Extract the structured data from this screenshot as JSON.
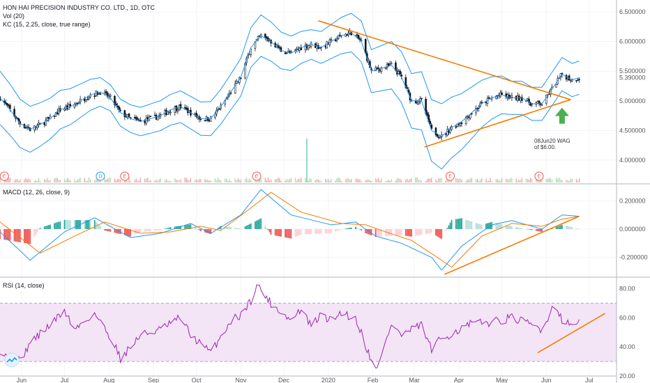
{
  "header": {
    "title": "HON HAI PRECISION INDUSTRY CO. LTD., 1D, OTC",
    "vol_label": "Vol (20)",
    "kc_label": "KC (15, 2.25, close, true range)",
    "macd_label": "MACD (12, 26, close, 9)",
    "rsi_label": "RSI (14, close)"
  },
  "colors": {
    "up": "#26a69a",
    "down": "#ef5350",
    "candle": "#131722",
    "kc": "#2196f3",
    "trend": "#f57c00",
    "macd": "#2196f3",
    "signal": "#f57c00",
    "rsi": "#9c27b0",
    "rsi_band": "#f3e5f5",
    "arrow": "#4caf50"
  },
  "annotation": {
    "line1": "08Jun20 WAG",
    "line2": "of $6.00."
  },
  "price_axis": {
    "ticks": [
      "6.500000",
      "6.000000",
      "5.500000",
      "5.000000",
      "4.500000",
      "4.000000"
    ],
    "last_price": "5.390000"
  },
  "macd_axis": {
    "ticks": [
      "0.200000",
      "0.000000",
      "-0.200000"
    ]
  },
  "rsi_axis": {
    "ticks": [
      "80.00",
      "60.00",
      "40.00",
      "20.00"
    ]
  },
  "time_axis": {
    "ticks": [
      "Jun",
      "Jul",
      "Aug",
      "Sep",
      "Oct",
      "Nov",
      "Dec",
      "2020",
      "Feb",
      "Mar",
      "Apr",
      "May",
      "Jun",
      "Jul"
    ]
  },
  "event_badges": [
    {
      "label": "E",
      "kind": "earnings"
    },
    {
      "label": "D",
      "kind": "dividend"
    },
    {
      "label": "E",
      "kind": "earnings"
    },
    {
      "label": "E",
      "kind": "earnings"
    },
    {
      "label": "E",
      "kind": "earnings"
    },
    {
      "label": "E",
      "kind": "earnings"
    }
  ],
  "chart_data": [
    {
      "type": "candlestick",
      "title": "HON HAI PRECISION INDUSTRY CO. LTD., 1D, OTC",
      "ylim": [
        3.6,
        6.7
      ],
      "x_range": [
        "2019-05-17",
        "2020-07-20"
      ],
      "close_path": [
        [
          "2019-05-17",
          5.05
        ],
        [
          "2019-05-24",
          4.85
        ],
        [
          "2019-05-31",
          4.62
        ],
        [
          "2019-06-07",
          4.52
        ],
        [
          "2019-06-14",
          4.6
        ],
        [
          "2019-06-21",
          4.7
        ],
        [
          "2019-06-28",
          4.85
        ],
        [
          "2019-07-05",
          4.9
        ],
        [
          "2019-07-12",
          5.0
        ],
        [
          "2019-07-19",
          5.1
        ],
        [
          "2019-07-26",
          5.15
        ],
        [
          "2019-08-02",
          5.05
        ],
        [
          "2019-08-09",
          4.8
        ],
        [
          "2019-08-16",
          4.7
        ],
        [
          "2019-08-23",
          4.65
        ],
        [
          "2019-08-30",
          4.7
        ],
        [
          "2019-09-06",
          4.75
        ],
        [
          "2019-09-13",
          4.85
        ],
        [
          "2019-09-20",
          4.9
        ],
        [
          "2019-09-27",
          4.8
        ],
        [
          "2019-10-04",
          4.7
        ],
        [
          "2019-10-11",
          4.7
        ],
        [
          "2019-10-18",
          4.9
        ],
        [
          "2019-10-25",
          5.15
        ],
        [
          "2019-11-01",
          5.4
        ],
        [
          "2019-11-08",
          5.9
        ],
        [
          "2019-11-15",
          6.1
        ],
        [
          "2019-11-22",
          6.0
        ],
        [
          "2019-11-29",
          5.85
        ],
        [
          "2019-12-06",
          5.8
        ],
        [
          "2019-12-13",
          5.9
        ],
        [
          "2019-12-20",
          5.95
        ],
        [
          "2019-12-27",
          5.9
        ],
        [
          "2020-01-03",
          6.0
        ],
        [
          "2020-01-10",
          6.1
        ],
        [
          "2020-01-17",
          6.15
        ],
        [
          "2020-01-24",
          6.0
        ],
        [
          "2020-01-31",
          5.5
        ],
        [
          "2020-02-07",
          5.55
        ],
        [
          "2020-02-14",
          5.6
        ],
        [
          "2020-02-21",
          5.4
        ],
        [
          "2020-02-28",
          5.0
        ],
        [
          "2020-03-06",
          5.0
        ],
        [
          "2020-03-13",
          4.5
        ],
        [
          "2020-03-20",
          4.4
        ],
        [
          "2020-03-27",
          4.55
        ],
        [
          "2020-04-03",
          4.65
        ],
        [
          "2020-04-10",
          4.8
        ],
        [
          "2020-04-17",
          4.95
        ],
        [
          "2020-04-24",
          5.05
        ],
        [
          "2020-05-01",
          5.1
        ],
        [
          "2020-05-08",
          5.05
        ],
        [
          "2020-05-15",
          5.05
        ],
        [
          "2020-05-22",
          4.95
        ],
        [
          "2020-05-29",
          4.95
        ],
        [
          "2020-06-05",
          5.2
        ],
        [
          "2020-06-12",
          5.45
        ],
        [
          "2020-06-19",
          5.35
        ],
        [
          "2020-06-24",
          5.39
        ]
      ],
      "kc_width": [
        [
          "2019-05-17",
          0.45
        ],
        [
          "2019-08-02",
          0.22
        ],
        [
          "2019-10-25",
          0.3
        ],
        [
          "2019-11-15",
          0.35
        ],
        [
          "2019-12-20",
          0.25
        ],
        [
          "2020-02-14",
          0.4
        ],
        [
          "2020-03-20",
          0.55
        ],
        [
          "2020-05-08",
          0.28
        ],
        [
          "2020-06-24",
          0.28
        ]
      ],
      "trendlines": [
        {
          "from": [
            "2019-12-25",
            6.35
          ],
          "to": [
            "2020-06-18",
            5.02
          ]
        },
        {
          "from": [
            "2020-03-08",
            4.22
          ],
          "to": [
            "2020-06-18",
            5.02
          ]
        }
      ],
      "volume_spike": "2019-12-17"
    },
    {
      "type": "line",
      "title": "MACD (12, 26, close, 9)",
      "ylim": [
        -0.33,
        0.3
      ],
      "series": [
        {
          "name": "MACD",
          "values": [
            [
              "2019-05-17",
              -0.02
            ],
            [
              "2019-06-07",
              -0.22
            ],
            [
              "2019-07-01",
              -0.02
            ],
            [
              "2019-07-22",
              0.08
            ],
            [
              "2019-08-16",
              -0.06
            ],
            [
              "2019-09-06",
              -0.03
            ],
            [
              "2019-09-27",
              0.04
            ],
            [
              "2019-10-11",
              -0.03
            ],
            [
              "2019-11-01",
              0.1
            ],
            [
              "2019-11-15",
              0.28
            ],
            [
              "2019-12-06",
              0.1
            ],
            [
              "2020-01-03",
              0.03
            ],
            [
              "2020-01-20",
              0.05
            ],
            [
              "2020-02-03",
              -0.05
            ],
            [
              "2020-02-21",
              -0.1
            ],
            [
              "2020-03-13",
              -0.2
            ],
            [
              "2020-03-20",
              -0.29
            ],
            [
              "2020-04-03",
              -0.12
            ],
            [
              "2020-04-24",
              0.03
            ],
            [
              "2020-05-08",
              0.06
            ],
            [
              "2020-05-29",
              0.0
            ],
            [
              "2020-06-12",
              0.1
            ],
            [
              "2020-06-24",
              0.09
            ]
          ]
        },
        {
          "name": "Signal",
          "values": [
            [
              "2019-05-17",
              0.05
            ],
            [
              "2019-06-14",
              -0.17
            ],
            [
              "2019-07-08",
              -0.05
            ],
            [
              "2019-07-29",
              0.05
            ],
            [
              "2019-08-23",
              -0.03
            ],
            [
              "2019-09-13",
              -0.02
            ],
            [
              "2019-10-04",
              0.02
            ],
            [
              "2019-10-18",
              -0.01
            ],
            [
              "2019-11-08",
              0.15
            ],
            [
              "2019-11-22",
              0.26
            ],
            [
              "2019-12-13",
              0.12
            ],
            [
              "2020-01-10",
              0.04
            ],
            [
              "2020-01-27",
              0.03
            ],
            [
              "2020-02-10",
              -0.02
            ],
            [
              "2020-02-28",
              -0.08
            ],
            [
              "2020-03-20",
              -0.22
            ],
            [
              "2020-03-27",
              -0.27
            ],
            [
              "2020-04-17",
              -0.05
            ],
            [
              "2020-05-08",
              0.04
            ],
            [
              "2020-05-29",
              0.02
            ],
            [
              "2020-06-12",
              0.07
            ],
            [
              "2020-06-24",
              0.09
            ]
          ]
        }
      ],
      "trendline": {
        "from": [
          "2020-03-22",
          -0.32
        ],
        "to": [
          "2020-06-24",
          0.09
        ]
      }
    },
    {
      "type": "line",
      "title": "RSI (14, close)",
      "ylim": [
        20,
        85
      ],
      "bands": [
        30,
        70
      ],
      "series": [
        {
          "name": "RSI",
          "values": [
            [
              "2019-05-17",
              38
            ],
            [
              "2019-05-31",
              30
            ],
            [
              "2019-06-07",
              43
            ],
            [
              "2019-06-21",
              55
            ],
            [
              "2019-07-01",
              65
            ],
            [
              "2019-07-08",
              52
            ],
            [
              "2019-07-22",
              63
            ],
            [
              "2019-08-05",
              42
            ],
            [
              "2019-08-09",
              32
            ],
            [
              "2019-08-23",
              48
            ],
            [
              "2019-09-06",
              52
            ],
            [
              "2019-09-20",
              60
            ],
            [
              "2019-09-27",
              48
            ],
            [
              "2019-10-04",
              42
            ],
            [
              "2019-10-11",
              36
            ],
            [
              "2019-10-25",
              58
            ],
            [
              "2019-11-01",
              62
            ],
            [
              "2019-11-08",
              72
            ],
            [
              "2019-11-12",
              83
            ],
            [
              "2019-11-22",
              70
            ],
            [
              "2019-12-06",
              58
            ],
            [
              "2019-12-13",
              66
            ],
            [
              "2019-12-20",
              54
            ],
            [
              "2019-12-27",
              62
            ],
            [
              "2020-01-03",
              58
            ],
            [
              "2020-01-10",
              64
            ],
            [
              "2020-01-20",
              59
            ],
            [
              "2020-01-24",
              50
            ],
            [
              "2020-01-31",
              30
            ],
            [
              "2020-02-05",
              27
            ],
            [
              "2020-02-14",
              56
            ],
            [
              "2020-02-21",
              48
            ],
            [
              "2020-03-06",
              55
            ],
            [
              "2020-03-13",
              38
            ],
            [
              "2020-03-20",
              46
            ],
            [
              "2020-03-27",
              49
            ],
            [
              "2020-04-10",
              56
            ],
            [
              "2020-04-24",
              57
            ],
            [
              "2020-05-08",
              60
            ],
            [
              "2020-05-22",
              55
            ],
            [
              "2020-05-29",
              52
            ],
            [
              "2020-06-05",
              66
            ],
            [
              "2020-06-08",
              68
            ],
            [
              "2020-06-12",
              59
            ],
            [
              "2020-06-17",
              55
            ],
            [
              "2020-06-24",
              58
            ]
          ]
        }
      ],
      "trendline": {
        "from": [
          "2020-05-26",
          36
        ],
        "to": [
          "2020-07-12",
          63
        ]
      }
    }
  ]
}
